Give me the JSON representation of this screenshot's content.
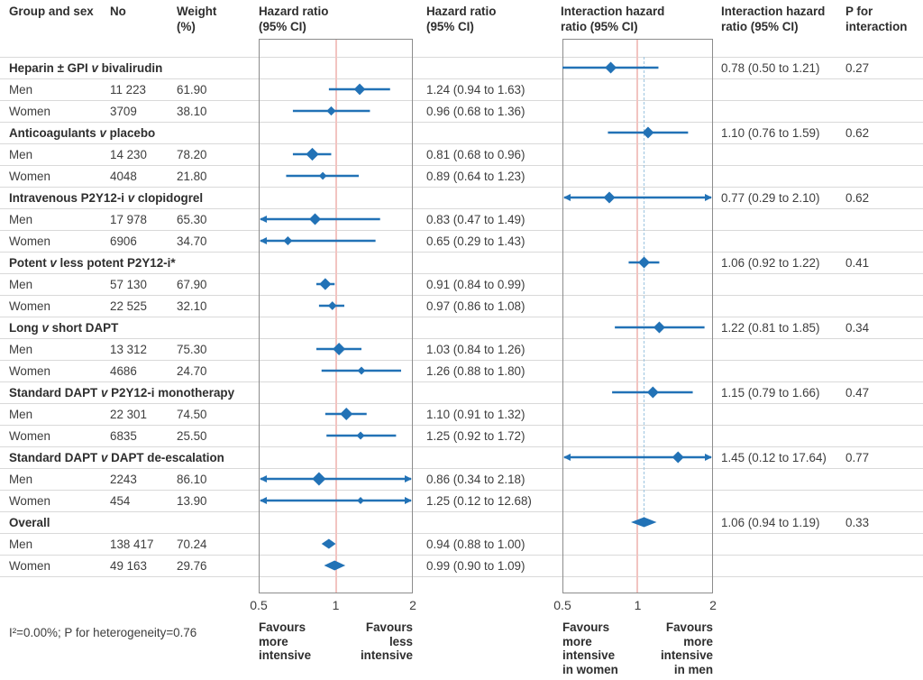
{
  "colors": {
    "blue": "#2272b6",
    "pink_reference_line": "#f2c4c1",
    "dashed_overall_line": "#9cc4e0",
    "grid_line": "#d9d9d9",
    "frame_border": "#8c8c8c",
    "text": "#3d3d3d"
  },
  "headers": {
    "group_sex": "Group and sex",
    "no": "No",
    "weight": "Weight\n(%)",
    "hr_plot": "Hazard ratio\n(95% CI)",
    "hr_text": "Hazard ratio\n(95% CI)",
    "ihr_plot": "Interaction hazard\nratio (95% CI)",
    "ihr_text": "Interaction hazard\nratio (95% CI)",
    "p": "P for\ninteraction"
  },
  "footnote": "I²=0.00%; P for heterogeneity=0.76",
  "chart_data": {
    "type": "forest",
    "xscale": "log2",
    "xlim": [
      0.5,
      2
    ],
    "axis_tick_labels": [
      "0.5",
      "1",
      "2"
    ],
    "axis_tick_values": [
      0.5,
      1,
      2
    ],
    "reference_line": 1,
    "overall_interaction_estimate_line": 1.06,
    "plots": [
      {
        "name": "hazard-ratio",
        "favours_left": [
          "Favours",
          "more",
          "intensive"
        ],
        "favours_right": [
          "Favours",
          "less",
          "intensive"
        ]
      },
      {
        "name": "interaction-hazard-ratio",
        "favours_left": [
          "Favours",
          "more",
          "intensive",
          "in women"
        ],
        "favours_right": [
          "Favours",
          "more",
          "intensive",
          "in men"
        ]
      }
    ],
    "groups": [
      {
        "pre": "Heparin ± GPI",
        "vs": "v",
        "post": "bivalirudin",
        "summary": false,
        "interaction": {
          "est": 0.78,
          "lo": 0.5,
          "hi": 1.21,
          "text": "0.78 (0.50 to 1.21)",
          "p": "0.27"
        },
        "members": [
          {
            "label": "Men",
            "no": "11 223",
            "weight": "61.90",
            "est": 1.24,
            "lo": 0.94,
            "hi": 1.63,
            "text": "1.24 (0.94 to 1.63)"
          },
          {
            "label": "Women",
            "no": "3709",
            "weight": "38.10",
            "est": 0.96,
            "lo": 0.68,
            "hi": 1.36,
            "text": "0.96 (0.68 to 1.36)"
          }
        ]
      },
      {
        "pre": "Anticoagulants",
        "vs": "v",
        "post": "placebo",
        "summary": false,
        "interaction": {
          "est": 1.1,
          "lo": 0.76,
          "hi": 1.59,
          "text": "1.10 (0.76 to 1.59)",
          "p": "0.62"
        },
        "members": [
          {
            "label": "Men",
            "no": "14 230",
            "weight": "78.20",
            "est": 0.81,
            "lo": 0.68,
            "hi": 0.96,
            "text": "0.81 (0.68 to 0.96)"
          },
          {
            "label": "Women",
            "no": "4048",
            "weight": "21.80",
            "est": 0.89,
            "lo": 0.64,
            "hi": 1.23,
            "text": "0.89 (0.64 to 1.23)"
          }
        ]
      },
      {
        "pre": "Intravenous P2Y12-i",
        "vs": "v",
        "post": "clopidogrel",
        "summary": false,
        "interaction": {
          "est": 0.77,
          "lo": 0.29,
          "hi": 2.1,
          "text": "0.77 (0.29 to 2.10)",
          "p": "0.62"
        },
        "members": [
          {
            "label": "Men",
            "no": "17 978",
            "weight": "65.30",
            "est": 0.83,
            "lo": 0.47,
            "hi": 1.49,
            "text": "0.83 (0.47 to 1.49)"
          },
          {
            "label": "Women",
            "no": "6906",
            "weight": "34.70",
            "est": 0.65,
            "lo": 0.29,
            "hi": 1.43,
            "text": "0.65 (0.29 to 1.43)"
          }
        ]
      },
      {
        "pre": "Potent",
        "vs": "v",
        "post": "less potent P2Y12-i*",
        "summary": false,
        "interaction": {
          "est": 1.06,
          "lo": 0.92,
          "hi": 1.22,
          "text": "1.06 (0.92 to 1.22)",
          "p": "0.41"
        },
        "members": [
          {
            "label": "Men",
            "no": "57 130",
            "weight": "67.90",
            "est": 0.91,
            "lo": 0.84,
            "hi": 0.99,
            "text": "0.91 (0.84 to 0.99)"
          },
          {
            "label": "Women",
            "no": "22 525",
            "weight": "32.10",
            "est": 0.97,
            "lo": 0.86,
            "hi": 1.08,
            "text": "0.97 (0.86 to 1.08)"
          }
        ]
      },
      {
        "pre": "Long",
        "vs": "v",
        "post": "short DAPT",
        "summary": false,
        "interaction": {
          "est": 1.22,
          "lo": 0.81,
          "hi": 1.85,
          "text": "1.22 (0.81 to 1.85)",
          "p": "0.34"
        },
        "members": [
          {
            "label": "Men",
            "no": "13 312",
            "weight": "75.30",
            "est": 1.03,
            "lo": 0.84,
            "hi": 1.26,
            "text": "1.03 (0.84 to 1.26)"
          },
          {
            "label": "Women",
            "no": "4686",
            "weight": "24.70",
            "est": 1.26,
            "lo": 0.88,
            "hi": 1.8,
            "text": "1.26 (0.88 to 1.80)"
          }
        ]
      },
      {
        "pre": "Standard DAPT",
        "vs": "v",
        "post": "P2Y12-i monotherapy",
        "summary": false,
        "interaction": {
          "est": 1.15,
          "lo": 0.79,
          "hi": 1.66,
          "text": "1.15 (0.79 to 1.66)",
          "p": "0.47"
        },
        "members": [
          {
            "label": "Men",
            "no": "22 301",
            "weight": "74.50",
            "est": 1.1,
            "lo": 0.91,
            "hi": 1.32,
            "text": "1.10 (0.91 to 1.32)"
          },
          {
            "label": "Women",
            "no": "6835",
            "weight": "25.50",
            "est": 1.25,
            "lo": 0.92,
            "hi": 1.72,
            "text": "1.25 (0.92 to 1.72)"
          }
        ]
      },
      {
        "pre": "Standard DAPT",
        "vs": "v",
        "post": "DAPT de-escalation",
        "summary": false,
        "interaction": {
          "est": 1.45,
          "lo": 0.12,
          "hi": 17.64,
          "text": "1.45 (0.12 to 17.64)",
          "p": "0.77"
        },
        "members": [
          {
            "label": "Men",
            "no": "2243",
            "weight": "86.10",
            "est": 0.86,
            "lo": 0.34,
            "hi": 2.18,
            "text": "0.86 (0.34 to 2.18)"
          },
          {
            "label": "Women",
            "no": "454",
            "weight": "13.90",
            "est": 1.25,
            "lo": 0.12,
            "hi": 12.68,
            "text": "1.25 (0.12 to 12.68)"
          }
        ]
      },
      {
        "pre": "Overall",
        "vs": "",
        "post": "",
        "summary": true,
        "interaction": {
          "est": 1.06,
          "lo": 0.94,
          "hi": 1.19,
          "text": "1.06 (0.94 to 1.19)",
          "p": "0.33"
        },
        "members": [
          {
            "label": "Men",
            "no": "138 417",
            "weight": "70.24",
            "est": 0.94,
            "lo": 0.88,
            "hi": 1.0,
            "text": "0.94 (0.88 to 1.00)"
          },
          {
            "label": "Women",
            "no": "49 163",
            "weight": "29.76",
            "est": 0.99,
            "lo": 0.9,
            "hi": 1.09,
            "text": "0.99 (0.90 to 1.09)"
          }
        ]
      }
    ]
  }
}
